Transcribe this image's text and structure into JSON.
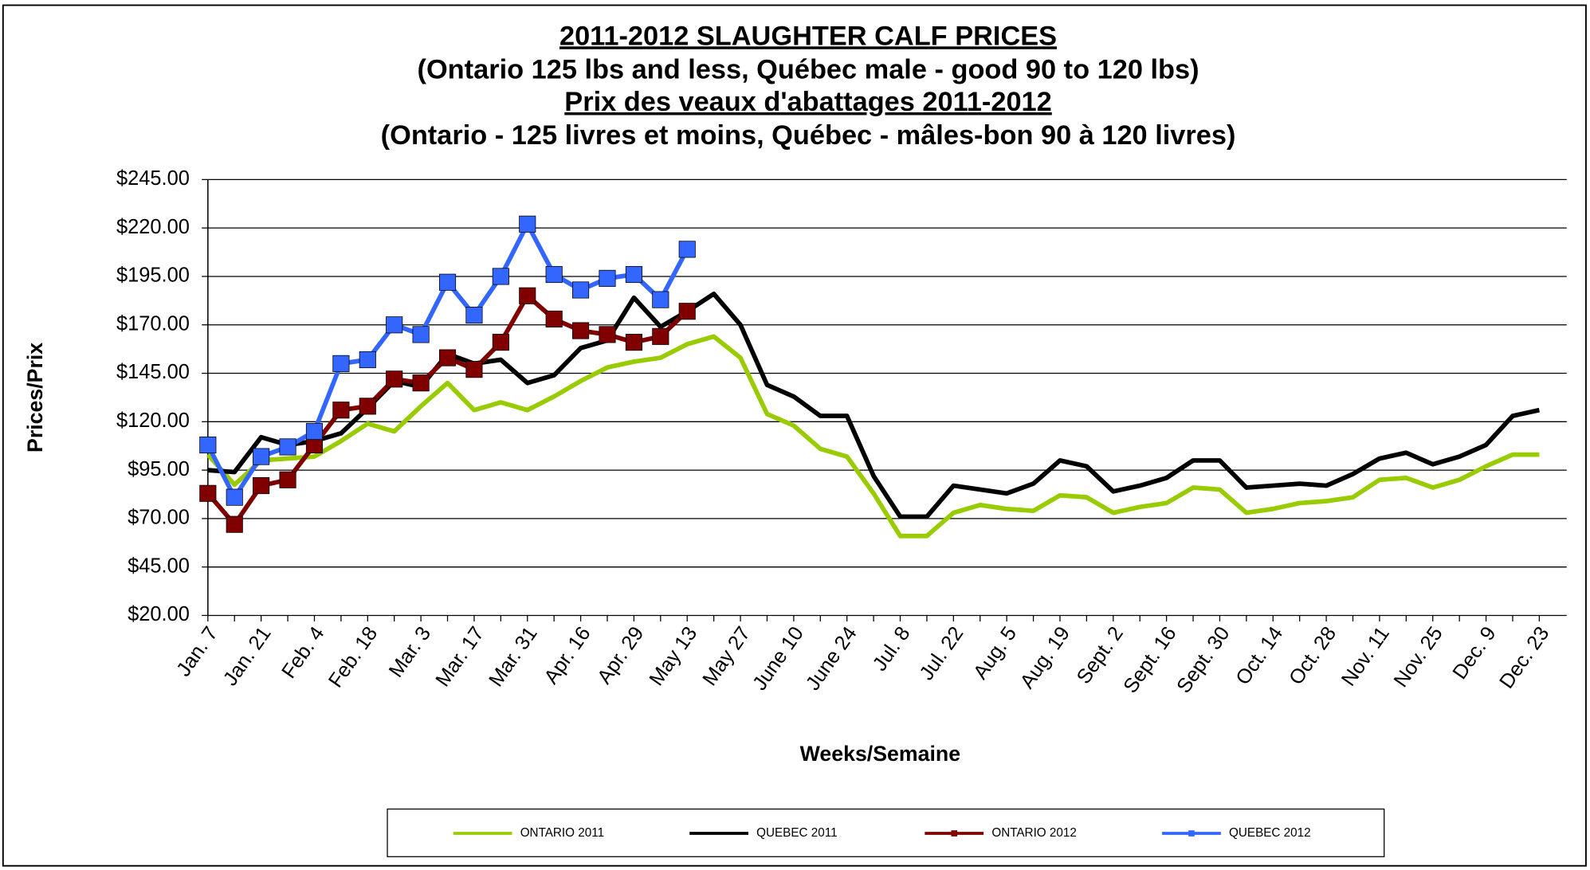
{
  "chart_data": {
    "type": "line",
    "title": "2011-2012 SLAUGHTER CALF PRICES",
    "subtitle": "(Ontario 125 lbs and less, Québec male - good 90 to 120 lbs)",
    "title_fr": "Prix des veaux d'abattages 2011-2012",
    "subtitle_fr": "(Ontario - 125 livres et moins, Québec -  mâles-bon 90 à 120 livres)",
    "x_label": "Weeks/Semaine",
    "y_label": "Prices/Prix",
    "categories": [
      "Jan. 7",
      null,
      "Jan. 21",
      null,
      "Feb. 4",
      null,
      "Feb. 18",
      null,
      "Mar. 3",
      null,
      "Mar. 17",
      null,
      "Mar. 31",
      null,
      "Apr. 16",
      null,
      "Apr. 29",
      null,
      "May 13",
      null,
      "May 27",
      null,
      "June 10",
      null,
      "June 24",
      null,
      "Jul. 8",
      null,
      "Jul. 22",
      null,
      "Aug. 5",
      null,
      "Aug. 19",
      null,
      "Sept. 2",
      null,
      "Sept. 16",
      null,
      "Sept. 30",
      null,
      "Oct. 14",
      null,
      "Oct. 28",
      null,
      "Nov. 11",
      null,
      "Nov. 25",
      null,
      "Dec. 9",
      null,
      "Dec. 23"
    ],
    "series": [
      {
        "name": "ONTARIO 2011",
        "color": "#99cc00",
        "marker": "none",
        "values": [
          103,
          87.5,
          100,
          101,
          102,
          110,
          119,
          115,
          128,
          140,
          126,
          130,
          126,
          133,
          141,
          148,
          151,
          153,
          160,
          164,
          153,
          124,
          118,
          106,
          102,
          83,
          61,
          61,
          73,
          77,
          75,
          74,
          82,
          81,
          73,
          76,
          78,
          86,
          85,
          73,
          75,
          78,
          79,
          81,
          90,
          91,
          86,
          90,
          97,
          103,
          103
        ]
      },
      {
        "name": "QUEBEC 2011",
        "color": "#000000",
        "marker": "none",
        "values": [
          95,
          94,
          112,
          108,
          110,
          114,
          127,
          141,
          138,
          155,
          150,
          152,
          140,
          144,
          158,
          162,
          184,
          169,
          177,
          186,
          170,
          139,
          133,
          123,
          123,
          92,
          71,
          71,
          87,
          85,
          83,
          88,
          100,
          97,
          84,
          87,
          91,
          100,
          100,
          86,
          87,
          88,
          87,
          93,
          101,
          104,
          98,
          102,
          108,
          123,
          126
        ]
      },
      {
        "name": "ONTARIO 2012",
        "color": "#800000",
        "marker": "square",
        "values": [
          83,
          67,
          87,
          90,
          108,
          126,
          128,
          142,
          140,
          153,
          147,
          161,
          185,
          173,
          167,
          165,
          161,
          164,
          177,
          null,
          null,
          null,
          null,
          null,
          null,
          null,
          null,
          null,
          null,
          null,
          null,
          null,
          null,
          null,
          null,
          null,
          null,
          null,
          null,
          null,
          null,
          null,
          null,
          null,
          null,
          null,
          null,
          null,
          null,
          null,
          null
        ]
      },
      {
        "name": "QUEBEC 2012",
        "color": "#3366ff",
        "marker": "square",
        "values": [
          108,
          81,
          102,
          107,
          115,
          150,
          152,
          170,
          165,
          192,
          175,
          195,
          222,
          196,
          188,
          194,
          196,
          183,
          209,
          null,
          null,
          null,
          null,
          null,
          null,
          null,
          null,
          null,
          null,
          null,
          null,
          null,
          null,
          null,
          null,
          null,
          null,
          null,
          null,
          null,
          null,
          null,
          null,
          null,
          null,
          null,
          null,
          null,
          null,
          null,
          null
        ]
      }
    ],
    "ylim": [
      20,
      245
    ],
    "yticks": [
      {
        "value": 20,
        "label": "$20.00"
      },
      {
        "value": 45,
        "label": "$45.00"
      },
      {
        "value": 70,
        "label": "$70.00"
      },
      {
        "value": 95,
        "label": "$95.00"
      },
      {
        "value": 120,
        "label": "$120.00"
      },
      {
        "value": 145,
        "label": "$145.00"
      },
      {
        "value": 170,
        "label": "$170.00"
      },
      {
        "value": 195,
        "label": "$195.00"
      },
      {
        "value": 220,
        "label": "$220.00"
      },
      {
        "value": 245,
        "label": "$245.00"
      }
    ],
    "grid": true,
    "legend": "bottom"
  }
}
